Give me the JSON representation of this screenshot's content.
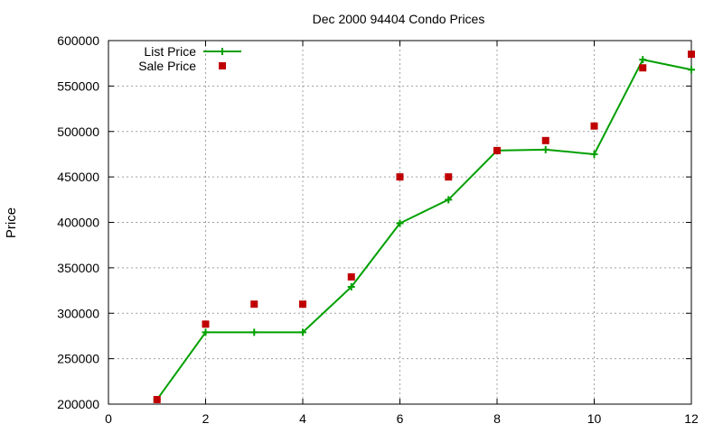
{
  "chart_data": {
    "type": "line",
    "title": "Dec 2000 94404 Condo Prices",
    "xlabel": "",
    "ylabel": "Price",
    "xlim": [
      0,
      12
    ],
    "ylim": [
      200000,
      600000
    ],
    "x_ticks": [
      0,
      2,
      4,
      6,
      8,
      10,
      12
    ],
    "y_ticks": [
      200000,
      250000,
      300000,
      350000,
      400000,
      450000,
      500000,
      550000,
      600000
    ],
    "grid": true,
    "legend_position": "top-left",
    "series": [
      {
        "name": "List Price",
        "style": "line-with-plus-markers",
        "color": "#00a000",
        "points": [
          [
            1,
            205000
          ],
          [
            2,
            279000
          ],
          [
            3,
            279000
          ],
          [
            4,
            279000
          ],
          [
            5,
            329000
          ],
          [
            6,
            399000
          ],
          [
            7,
            425000
          ],
          [
            8,
            479000
          ],
          [
            9,
            480000
          ],
          [
            10,
            475000
          ],
          [
            11,
            579000
          ],
          [
            12,
            568000
          ]
        ]
      },
      {
        "name": "Sale Price",
        "style": "square-markers",
        "color": "#c00000",
        "points": [
          [
            1,
            205000
          ],
          [
            2,
            288000
          ],
          [
            3,
            310000
          ],
          [
            4,
            310000
          ],
          [
            5,
            340000
          ],
          [
            6,
            450000
          ],
          [
            7,
            450000
          ],
          [
            8,
            479000
          ],
          [
            9,
            490000
          ],
          [
            10,
            506000
          ],
          [
            11,
            570000
          ],
          [
            12,
            585000
          ]
        ]
      }
    ]
  }
}
